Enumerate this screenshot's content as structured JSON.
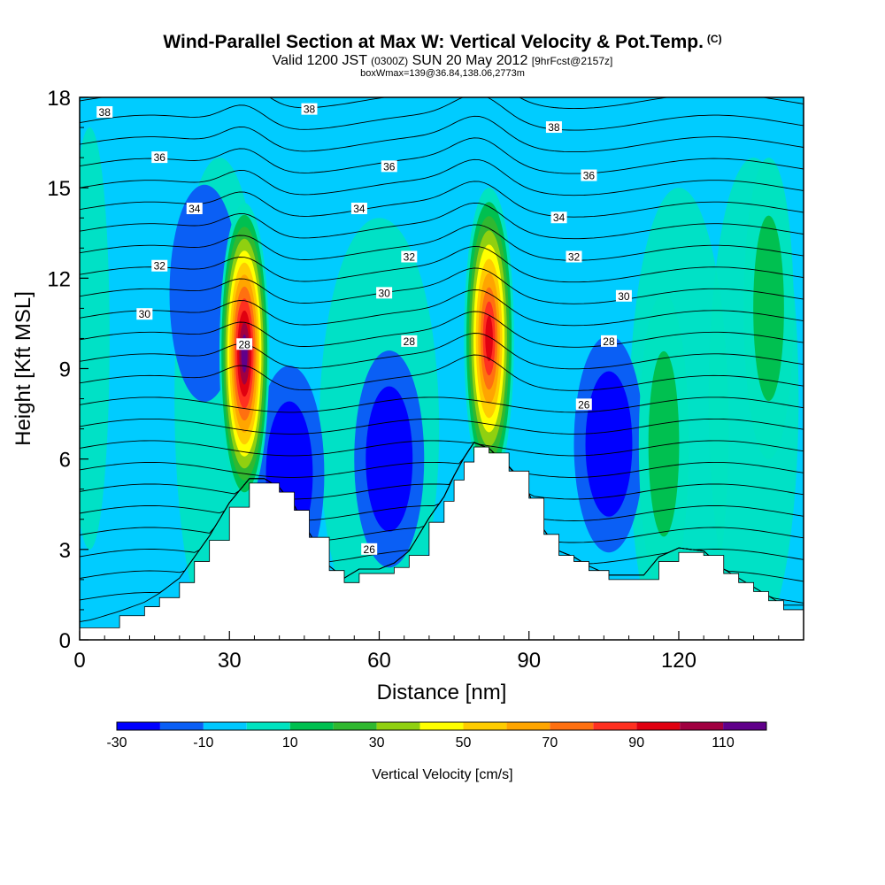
{
  "title": {
    "main": "Wind-Parallel Section at Max W: Vertical Velocity & Pot.Temp.",
    "main_mark": "(C)",
    "sub_valid": "Valid 1200 JST",
    "sub_zulu": "(0300Z)",
    "sub_date": "SUN 20 May 2012",
    "sub_fcst": "[9hrFcst@2157z]",
    "sub3": "boxWmax=139@36.84,138.06,2773m"
  },
  "chart_data": {
    "type": "heatmap",
    "xlabel": "Distance [nm]",
    "ylabel": "Height [Kft MSL]",
    "xlim": [
      0,
      145
    ],
    "ylim": [
      0,
      18
    ],
    "x_ticks": [
      0,
      30,
      60,
      90,
      120
    ],
    "y_ticks": [
      0,
      3,
      6,
      9,
      12,
      15,
      18
    ],
    "colorbar": {
      "label": "Vertical Velocity [cm/s]",
      "levels": [
        -30,
        -20,
        -10,
        0,
        10,
        20,
        30,
        40,
        50,
        60,
        70,
        80,
        90,
        100,
        110,
        120
      ],
      "tick_values": [
        -30,
        -10,
        10,
        30,
        50,
        70,
        90,
        110
      ],
      "tick_labels": [
        "-30",
        "-10",
        "10",
        "30",
        "50",
        "70",
        "90",
        "110"
      ],
      "colors": [
        "#0000ff",
        "#0a5ff5",
        "#00c8ff",
        "#00e3c0",
        "#00c050",
        "#30b830",
        "#90d010",
        "#ffff00",
        "#ffcc00",
        "#ffa500",
        "#ff7010",
        "#ff3020",
        "#e00010",
        "#a00040",
        "#60008a"
      ]
    },
    "background_color": "#00ccff",
    "terrain": {
      "x": [
        0,
        8,
        13,
        16,
        20,
        23,
        26,
        30,
        34,
        37,
        40,
        43,
        46,
        50,
        53,
        56,
        60,
        63,
        66,
        70,
        73,
        75,
        77,
        79,
        82,
        86,
        90,
        93,
        96,
        99,
        102,
        106,
        109,
        113,
        116,
        120,
        125,
        129,
        132,
        135,
        138,
        141,
        145
      ],
      "y": [
        0.4,
        0.8,
        1.1,
        1.4,
        1.9,
        2.6,
        3.3,
        4.4,
        5.2,
        5.2,
        4.9,
        4.3,
        3.4,
        2.3,
        1.9,
        2.2,
        2.2,
        2.4,
        2.8,
        3.9,
        4.6,
        5.3,
        5.9,
        6.4,
        6.2,
        5.6,
        4.7,
        3.5,
        2.8,
        2.6,
        2.3,
        2.0,
        2.0,
        2.0,
        2.6,
        2.9,
        2.8,
        2.2,
        1.9,
        1.6,
        1.3,
        1.0,
        1.0
      ]
    },
    "updrafts": [
      {
        "x": 33,
        "y": 9.5,
        "wmax": 120
      },
      {
        "x": 82,
        "y": 10,
        "wmax": 100
      },
      {
        "x": 117,
        "y": 6.5,
        "wmax": 20
      },
      {
        "x": 138,
        "y": 11,
        "wmax": 15
      }
    ],
    "downdrafts": [
      {
        "x": 42,
        "y": 5.5,
        "wmin": -25
      },
      {
        "x": 62,
        "y": 6,
        "wmin": -30
      },
      {
        "x": 106,
        "y": 6.5,
        "wmin": -30
      },
      {
        "x": 25,
        "y": 11.5,
        "wmin": -18
      }
    ],
    "theta_labels": [
      {
        "text": "38",
        "x": 5,
        "y": 17.5
      },
      {
        "text": "38",
        "x": 46,
        "y": 17.6
      },
      {
        "text": "38",
        "x": 95,
        "y": 17.0
      },
      {
        "text": "36",
        "x": 16,
        "y": 16.0
      },
      {
        "text": "36",
        "x": 62,
        "y": 15.7
      },
      {
        "text": "36",
        "x": 102,
        "y": 15.4
      },
      {
        "text": "34",
        "x": 23,
        "y": 14.3
      },
      {
        "text": "34",
        "x": 56,
        "y": 14.3
      },
      {
        "text": "34",
        "x": 96,
        "y": 14.0
      },
      {
        "text": "32",
        "x": 16,
        "y": 12.4
      },
      {
        "text": "32",
        "x": 66,
        "y": 12.7
      },
      {
        "text": "32",
        "x": 99,
        "y": 12.7
      },
      {
        "text": "30",
        "x": 13,
        "y": 10.8
      },
      {
        "text": "30",
        "x": 61,
        "y": 11.5
      },
      {
        "text": "30",
        "x": 109,
        "y": 11.4
      },
      {
        "text": "28",
        "x": 33,
        "y": 9.8
      },
      {
        "text": "28",
        "x": 66,
        "y": 9.9
      },
      {
        "text": "28",
        "x": 106,
        "y": 9.9
      },
      {
        "text": "26",
        "x": 101,
        "y": 7.8
      },
      {
        "text": "26",
        "x": 58,
        "y": 3.0
      }
    ]
  }
}
